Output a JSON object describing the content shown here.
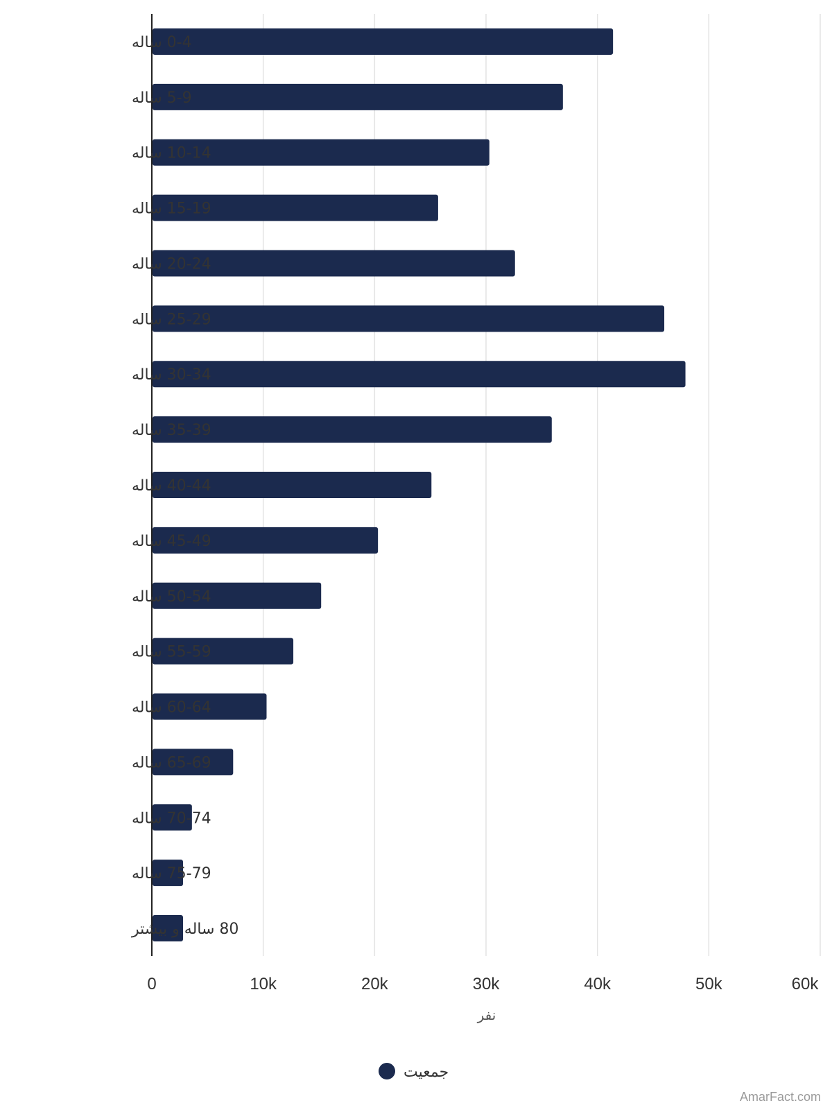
{
  "chart_data": {
    "type": "bar",
    "orientation": "horizontal",
    "categories": [
      "0-4 ساله",
      "5-9 ساله",
      "10-14 ساله",
      "15-19 ساله",
      "20-24 ساله",
      "25-29 ساله",
      "30-34 ساله",
      "35-39 ساله",
      "40-44 ساله",
      "45-49 ساله",
      "50-54 ساله",
      "55-59 ساله",
      "60-64 ساله",
      "65-69 ساله",
      "70-74 ساله",
      "75-79 ساله",
      "80 ساله و بیشتر"
    ],
    "series": [
      {
        "name": "جمعیت",
        "values": [
          41400,
          36900,
          30300,
          25700,
          32600,
          46000,
          47900,
          35900,
          25100,
          20300,
          15200,
          12700,
          10300,
          7300,
          3600,
          2800,
          2800
        ]
      }
    ],
    "xlabel": "نفر",
    "xlim": [
      0,
      60000
    ],
    "xticks": [
      "0",
      "10k",
      "20k",
      "30k",
      "40k",
      "50k",
      "60k"
    ],
    "grid": true,
    "legend_position": "bottom",
    "bar_color": "#1b2a4e"
  },
  "watermark": "AmarFact.com"
}
